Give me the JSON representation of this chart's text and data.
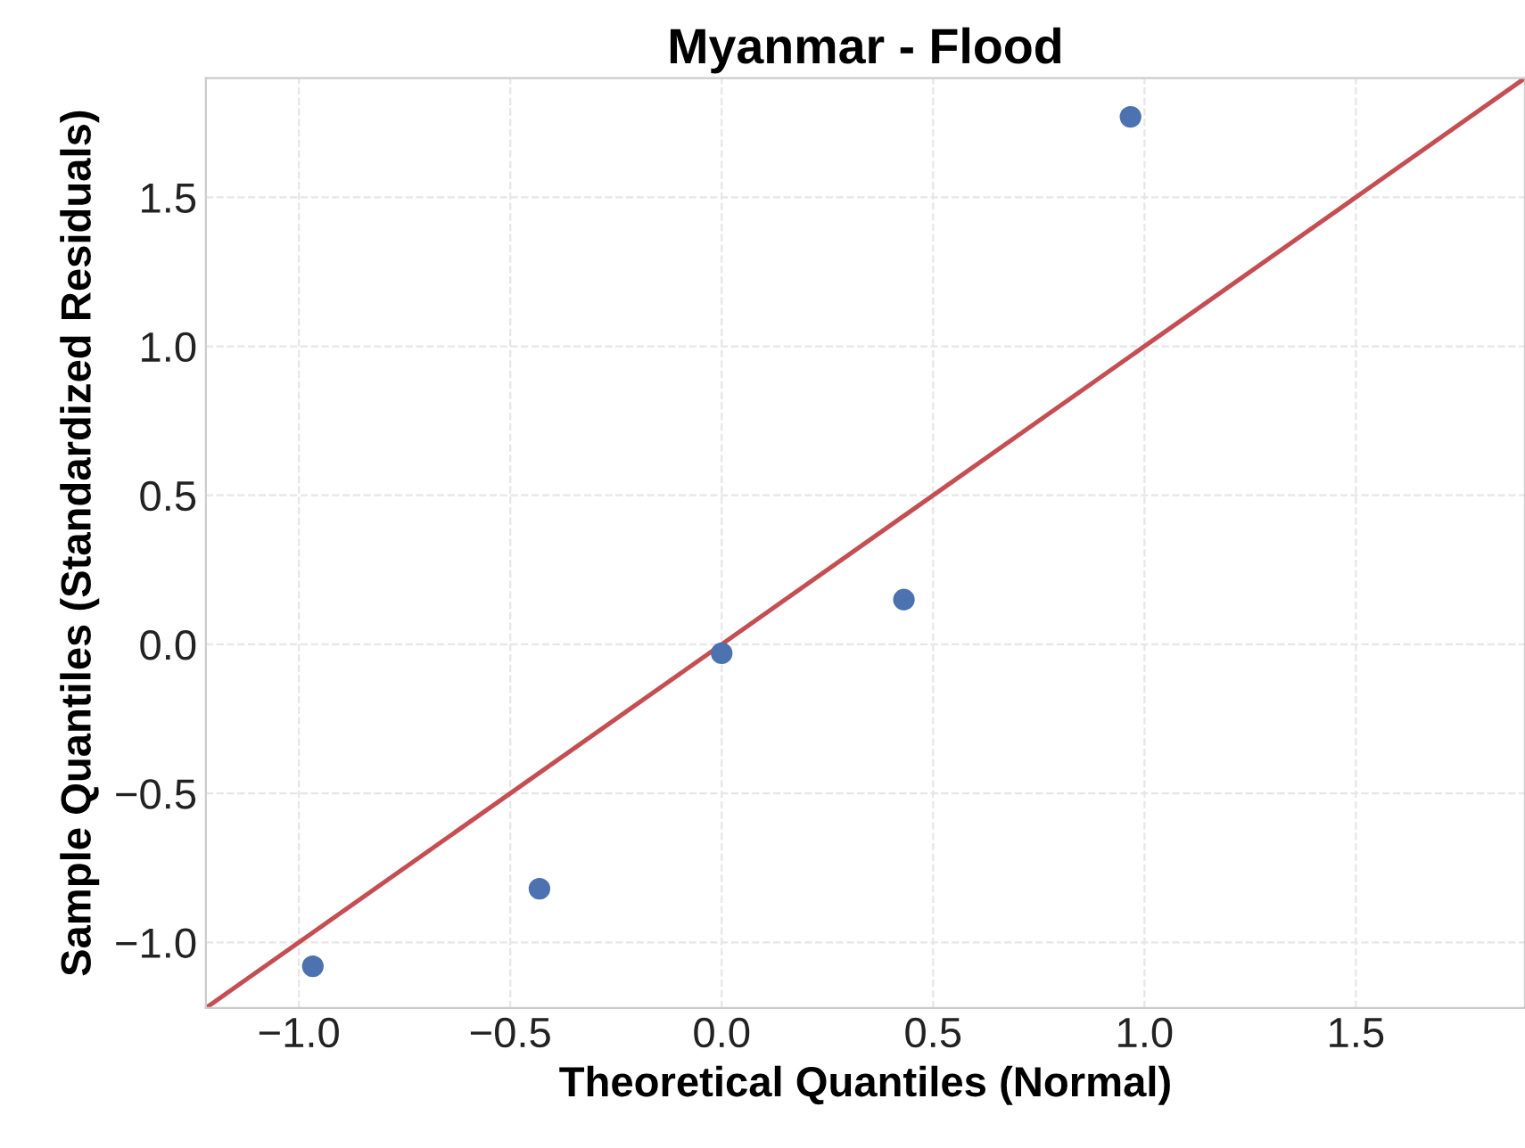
{
  "chart_data": {
    "type": "scatter",
    "title": "Myanmar - Flood",
    "xlabel": "Theoretical Quantiles (Normal)",
    "ylabel": "Sample Quantiles (Standardized Residuals)",
    "series": [
      {
        "marker": "circle",
        "color": "#4c72b0",
        "x": [
          -0.967,
          -0.431,
          0.0,
          0.431,
          0.967
        ],
        "values": [
          -1.08,
          -0.82,
          -0.03,
          0.15,
          1.77
        ]
      },
      {
        "type": "line",
        "marker": "none",
        "color": "#c44e52",
        "x": [
          -1.22,
          1.9
        ],
        "values": [
          -1.22,
          1.9
        ]
      }
    ],
    "xlim": [
      -1.22,
      1.9
    ],
    "ylim": [
      -1.22,
      1.9
    ],
    "xticks": [
      {
        "value": -1.0,
        "label": "−1.0"
      },
      {
        "value": -0.5,
        "label": "−0.5"
      },
      {
        "value": 0.0,
        "label": "0.0"
      },
      {
        "value": 0.5,
        "label": "0.5"
      },
      {
        "value": 1.0,
        "label": "1.0"
      },
      {
        "value": 1.5,
        "label": "1.5"
      }
    ],
    "yticks": [
      {
        "value": -1.0,
        "label": "−1.0"
      },
      {
        "value": -0.5,
        "label": "−0.5"
      },
      {
        "value": 0.0,
        "label": "0.0"
      },
      {
        "value": 0.5,
        "label": "0.5"
      },
      {
        "value": 1.0,
        "label": "1.0"
      },
      {
        "value": 1.5,
        "label": "1.5"
      }
    ],
    "grid": true
  }
}
